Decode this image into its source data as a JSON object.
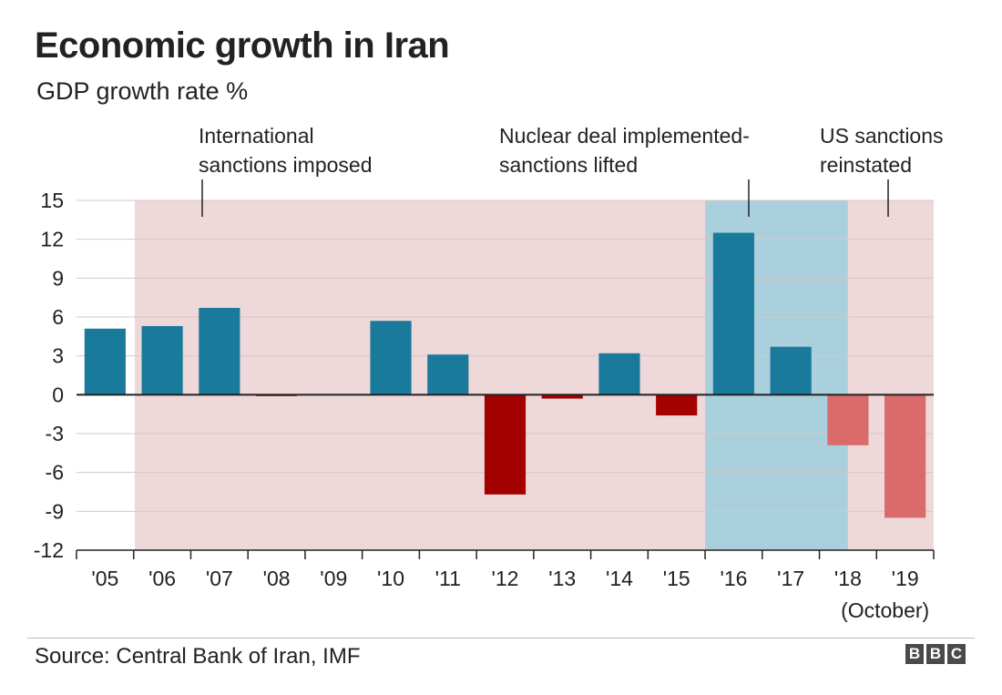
{
  "header": {
    "title": "Economic growth in Iran",
    "subtitle": "GDP growth rate %"
  },
  "footer": {
    "source": "Source: Central Bank of Iran, IMF",
    "logo_letters": [
      "B",
      "B",
      "C"
    ]
  },
  "colors": {
    "positive": "#1a7a9c",
    "negative": "#a30000",
    "projected_negative": "#db6b6b",
    "sanctions_band": "#eed8d9",
    "lifted_band": "#a9d0dc",
    "axis": "#222222",
    "grid": "#d9c6c7"
  },
  "chart_data": {
    "type": "bar",
    "title": "Economic growth in Iran",
    "subtitle": "GDP growth rate %",
    "categories": [
      "'05",
      "'06",
      "'07",
      "'08",
      "'09",
      "'10",
      "'11",
      "'12",
      "'13",
      "'14",
      "'15",
      "'16",
      "'17",
      "'18",
      "'19"
    ],
    "category_notes": {
      "'19": "(October)"
    },
    "values": [
      5.1,
      5.3,
      6.7,
      -0.1,
      0.0,
      5.7,
      3.1,
      -7.7,
      -0.3,
      3.2,
      -1.6,
      12.5,
      3.7,
      -3.9,
      -9.5
    ],
    "estimated": [
      false,
      false,
      false,
      false,
      false,
      false,
      false,
      false,
      false,
      false,
      false,
      false,
      false,
      true,
      true
    ],
    "ylim": [
      -12,
      15
    ],
    "yticks": [
      15,
      12,
      9,
      6,
      3,
      0,
      -3,
      -6,
      -9,
      -12
    ],
    "grid": true,
    "periods": [
      {
        "name": "International sanctions imposed",
        "label_lines": [
          "International",
          "sanctions imposed"
        ],
        "start_category": 1,
        "end_category": 11,
        "kind": "sanctions"
      },
      {
        "name": "Nuclear deal implemented- sanctions lifted",
        "label_lines": [
          "Nuclear deal implemented-",
          "sanctions lifted"
        ],
        "start_category": 11,
        "end_category": 13.5,
        "kind": "lifted"
      },
      {
        "name": "US sanctions reinstated",
        "label_lines": [
          "US sanctions",
          "reinstated"
        ],
        "start_category": 13.5,
        "end_category": 15,
        "kind": "sanctions"
      }
    ]
  }
}
